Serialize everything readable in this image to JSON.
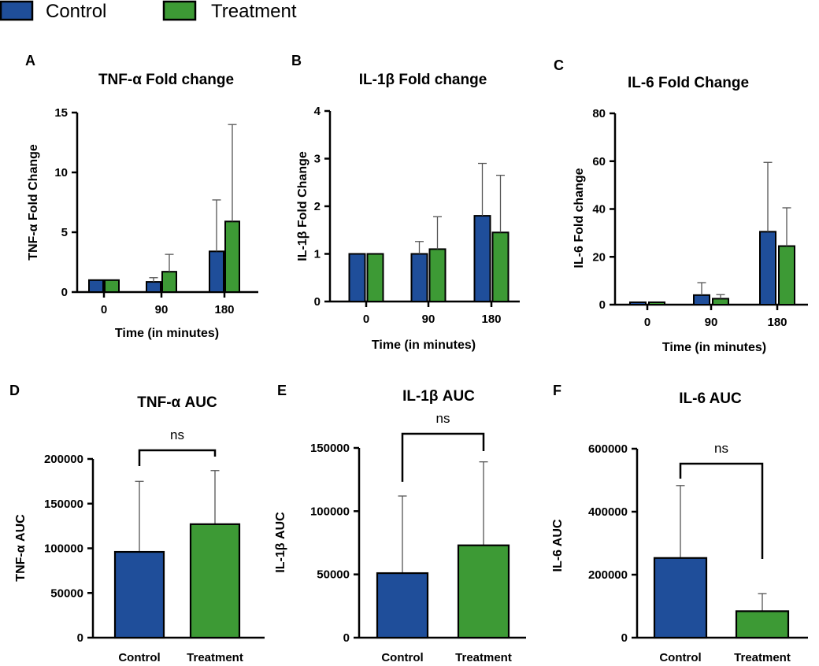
{
  "colors": {
    "control": "#1f4e9a",
    "treatment": "#3d9a35",
    "stroke": "#000000"
  },
  "legend": [
    {
      "name": "Control",
      "color": "#1f4e9a"
    },
    {
      "name": "Treatment",
      "color": "#3d9a35"
    }
  ],
  "chart_data": [
    {
      "panel": "A",
      "type": "bar",
      "title": "TNF-α Fold change",
      "xlabel": "Time (in minutes)",
      "ylabel": "TNF-α Fold Change",
      "ylim": [
        0,
        15
      ],
      "yticks": [
        0,
        5,
        10,
        15
      ],
      "categories": [
        "0",
        "90",
        "180"
      ],
      "series": [
        {
          "name": "Control",
          "values": [
            1.0,
            0.85,
            3.4
          ],
          "errors": [
            0,
            0.35,
            4.3
          ]
        },
        {
          "name": "Treatment",
          "values": [
            1.0,
            1.7,
            5.9
          ],
          "errors": [
            0,
            1.45,
            8.1
          ]
        }
      ]
    },
    {
      "panel": "B",
      "type": "bar",
      "title": "IL-1β Fold change",
      "xlabel": "Time (in minutes)",
      "ylabel": "IL-1β  Fold Change",
      "ylim": [
        0,
        4
      ],
      "yticks": [
        0,
        1,
        2,
        3,
        4
      ],
      "categories": [
        "0",
        "90",
        "180"
      ],
      "series": [
        {
          "name": "Control",
          "values": [
            1.0,
            1.0,
            1.8
          ],
          "errors": [
            0,
            0.26,
            1.1
          ]
        },
        {
          "name": "Treatment",
          "values": [
            1.0,
            1.1,
            1.45
          ],
          "errors": [
            0,
            0.68,
            1.2
          ]
        }
      ]
    },
    {
      "panel": "C",
      "type": "bar",
      "title": "IL-6 Fold Change",
      "xlabel": "Time (in minutes)",
      "ylabel": "IL-6 Fold change",
      "ylim": [
        0,
        80
      ],
      "yticks": [
        0,
        20,
        40,
        60,
        80
      ],
      "categories": [
        "0",
        "90",
        "180"
      ],
      "series": [
        {
          "name": "Control",
          "values": [
            1.0,
            4.0,
            30.5
          ],
          "errors": [
            0,
            5.2,
            29
          ]
        },
        {
          "name": "Treatment",
          "values": [
            1.0,
            2.5,
            24.5
          ],
          "errors": [
            0,
            1.7,
            16
          ]
        }
      ]
    },
    {
      "panel": "D",
      "type": "bar",
      "title": "TNF-α AUC",
      "xlabel": "",
      "ylabel": "TNF-α AUC",
      "ylim": [
        0,
        200000
      ],
      "yticks": [
        0,
        50000,
        100000,
        150000,
        200000
      ],
      "categories": [
        "Control",
        "Treatment"
      ],
      "values": [
        96000,
        127000
      ],
      "errors": [
        79000,
        60000
      ],
      "significance": "ns"
    },
    {
      "panel": "E",
      "type": "bar",
      "title": "IL-1β  AUC",
      "xlabel": "",
      "ylabel": "IL-1β  AUC",
      "ylim": [
        0,
        150000
      ],
      "yticks": [
        0,
        50000,
        100000,
        150000
      ],
      "categories": [
        "Control",
        "Treatment"
      ],
      "values": [
        51000,
        73000
      ],
      "errors": [
        61000,
        66000
      ],
      "significance": "ns"
    },
    {
      "panel": "F",
      "type": "bar",
      "title": "IL-6 AUC",
      "xlabel": "",
      "ylabel": "IL-6 AUC",
      "ylim": [
        0,
        600000
      ],
      "yticks": [
        0,
        200000,
        400000,
        600000
      ],
      "categories": [
        "Control",
        "Treatment"
      ],
      "values": [
        253000,
        84000
      ],
      "errors": [
        230000,
        56000
      ],
      "significance": "ns"
    }
  ]
}
